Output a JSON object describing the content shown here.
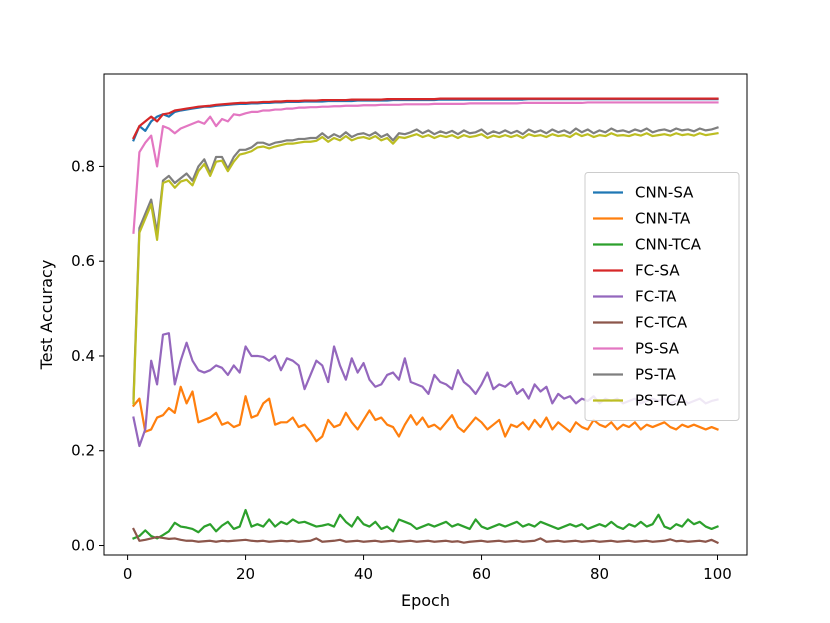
{
  "chart_data": {
    "type": "line",
    "title": "",
    "xlabel": "Epoch",
    "ylabel": "Test Accuracy",
    "xlim": [
      -4.0,
      105.0
    ],
    "ylim": [
      -0.02,
      0.995
    ],
    "xticks": [
      0,
      20,
      40,
      60,
      80,
      100
    ],
    "yticks": [
      0.0,
      0.2,
      0.4,
      0.6,
      0.8
    ],
    "xtick_labels": [
      "0",
      "20",
      "40",
      "60",
      "80",
      "100"
    ],
    "ytick_labels": [
      "0.0",
      "0.2",
      "0.4",
      "0.6",
      "0.8"
    ],
    "grid": false,
    "legend": "center-right",
    "x": [
      1,
      2,
      3,
      4,
      5,
      6,
      7,
      8,
      9,
      10,
      11,
      12,
      13,
      14,
      15,
      16,
      17,
      18,
      19,
      20,
      21,
      22,
      23,
      24,
      25,
      26,
      27,
      28,
      29,
      30,
      31,
      32,
      33,
      34,
      35,
      36,
      37,
      38,
      39,
      40,
      41,
      42,
      43,
      44,
      45,
      46,
      47,
      48,
      49,
      50,
      51,
      52,
      53,
      54,
      55,
      56,
      57,
      58,
      59,
      60,
      61,
      62,
      63,
      64,
      65,
      66,
      67,
      68,
      69,
      70,
      71,
      72,
      73,
      74,
      75,
      76,
      77,
      78,
      79,
      80,
      81,
      82,
      83,
      84,
      85,
      86,
      87,
      88,
      89,
      90,
      91,
      92,
      93,
      94,
      95,
      96,
      97,
      98,
      99,
      100
    ],
    "series": [
      {
        "name": "CNN-SA",
        "color": "#1f77b4",
        "values": [
          0.855,
          0.885,
          0.875,
          0.895,
          0.905,
          0.91,
          0.905,
          0.915,
          0.918,
          0.92,
          0.922,
          0.924,
          0.926,
          0.926,
          0.928,
          0.929,
          0.93,
          0.931,
          0.932,
          0.932,
          0.933,
          0.933,
          0.934,
          0.934,
          0.935,
          0.935,
          0.936,
          0.936,
          0.936,
          0.937,
          0.937,
          0.937,
          0.937,
          0.938,
          0.938,
          0.938,
          0.938,
          0.938,
          0.939,
          0.939,
          0.939,
          0.939,
          0.939,
          0.939,
          0.94,
          0.94,
          0.94,
          0.94,
          0.94,
          0.94,
          0.94,
          0.94,
          0.941,
          0.941,
          0.941,
          0.941,
          0.941,
          0.941,
          0.941,
          0.941,
          0.941,
          0.941,
          0.941,
          0.941,
          0.941,
          0.941,
          0.941,
          0.942,
          0.942,
          0.942,
          0.942,
          0.942,
          0.942,
          0.942,
          0.942,
          0.942,
          0.942,
          0.942,
          0.942,
          0.942,
          0.942,
          0.942,
          0.942,
          0.942,
          0.942,
          0.942,
          0.942,
          0.942,
          0.942,
          0.942,
          0.942,
          0.942,
          0.942,
          0.942,
          0.942,
          0.942,
          0.942,
          0.942,
          0.942,
          0.942
        ]
      },
      {
        "name": "CNN-TA",
        "color": "#ff7f0e",
        "values": [
          0.295,
          0.31,
          0.24,
          0.245,
          0.27,
          0.275,
          0.29,
          0.28,
          0.335,
          0.3,
          0.325,
          0.26,
          0.265,
          0.27,
          0.28,
          0.255,
          0.26,
          0.25,
          0.255,
          0.315,
          0.27,
          0.275,
          0.3,
          0.31,
          0.255,
          0.26,
          0.26,
          0.27,
          0.25,
          0.255,
          0.24,
          0.22,
          0.23,
          0.265,
          0.25,
          0.255,
          0.28,
          0.26,
          0.245,
          0.265,
          0.285,
          0.265,
          0.27,
          0.255,
          0.25,
          0.23,
          0.255,
          0.275,
          0.255,
          0.27,
          0.25,
          0.255,
          0.245,
          0.26,
          0.275,
          0.25,
          0.24,
          0.255,
          0.27,
          0.26,
          0.245,
          0.255,
          0.265,
          0.23,
          0.255,
          0.25,
          0.26,
          0.245,
          0.265,
          0.25,
          0.27,
          0.245,
          0.26,
          0.25,
          0.24,
          0.26,
          0.25,
          0.245,
          0.265,
          0.255,
          0.25,
          0.26,
          0.245,
          0.255,
          0.25,
          0.26,
          0.245,
          0.255,
          0.25,
          0.255,
          0.26,
          0.25,
          0.245,
          0.255,
          0.25,
          0.255,
          0.25,
          0.245,
          0.25,
          0.245
        ]
      },
      {
        "name": "CNN-TCA",
        "color": "#2ca02c",
        "values": [
          0.015,
          0.02,
          0.032,
          0.02,
          0.015,
          0.022,
          0.03,
          0.048,
          0.04,
          0.038,
          0.035,
          0.028,
          0.04,
          0.045,
          0.03,
          0.042,
          0.05,
          0.035,
          0.04,
          0.075,
          0.04,
          0.045,
          0.04,
          0.055,
          0.04,
          0.05,
          0.045,
          0.055,
          0.048,
          0.05,
          0.045,
          0.04,
          0.042,
          0.045,
          0.04,
          0.065,
          0.05,
          0.04,
          0.06,
          0.045,
          0.04,
          0.05,
          0.035,
          0.04,
          0.03,
          0.055,
          0.05,
          0.045,
          0.035,
          0.04,
          0.045,
          0.04,
          0.045,
          0.05,
          0.04,
          0.045,
          0.04,
          0.035,
          0.055,
          0.04,
          0.035,
          0.04,
          0.045,
          0.04,
          0.045,
          0.05,
          0.04,
          0.045,
          0.04,
          0.05,
          0.045,
          0.04,
          0.035,
          0.04,
          0.045,
          0.04,
          0.045,
          0.035,
          0.04,
          0.045,
          0.04,
          0.05,
          0.04,
          0.035,
          0.045,
          0.04,
          0.05,
          0.04,
          0.045,
          0.065,
          0.04,
          0.035,
          0.045,
          0.04,
          0.055,
          0.045,
          0.05,
          0.04,
          0.035,
          0.04
        ]
      },
      {
        "name": "FC-SA",
        "color": "#d62728",
        "values": [
          0.86,
          0.885,
          0.895,
          0.905,
          0.895,
          0.91,
          0.912,
          0.918,
          0.92,
          0.922,
          0.924,
          0.926,
          0.927,
          0.928,
          0.93,
          0.931,
          0.932,
          0.933,
          0.934,
          0.934,
          0.935,
          0.935,
          0.936,
          0.936,
          0.937,
          0.937,
          0.938,
          0.938,
          0.938,
          0.939,
          0.939,
          0.939,
          0.94,
          0.94,
          0.94,
          0.94,
          0.94,
          0.941,
          0.941,
          0.941,
          0.941,
          0.941,
          0.941,
          0.942,
          0.942,
          0.942,
          0.942,
          0.942,
          0.942,
          0.942,
          0.942,
          0.942,
          0.943,
          0.943,
          0.943,
          0.943,
          0.943,
          0.943,
          0.943,
          0.943,
          0.943,
          0.943,
          0.943,
          0.943,
          0.943,
          0.943,
          0.943,
          0.943,
          0.943,
          0.943,
          0.943,
          0.943,
          0.943,
          0.943,
          0.943,
          0.943,
          0.943,
          0.943,
          0.943,
          0.943,
          0.943,
          0.943,
          0.943,
          0.943,
          0.943,
          0.943,
          0.943,
          0.943,
          0.943,
          0.943,
          0.943,
          0.943,
          0.943,
          0.943,
          0.943,
          0.943,
          0.943,
          0.943,
          0.943,
          0.943
        ]
      },
      {
        "name": "FC-TA",
        "color": "#9467bd",
        "values": [
          0.27,
          0.21,
          0.245,
          0.39,
          0.34,
          0.445,
          0.448,
          0.34,
          0.39,
          0.428,
          0.39,
          0.37,
          0.365,
          0.37,
          0.38,
          0.375,
          0.36,
          0.38,
          0.365,
          0.42,
          0.4,
          0.4,
          0.398,
          0.39,
          0.4,
          0.37,
          0.395,
          0.39,
          0.38,
          0.33,
          0.36,
          0.39,
          0.38,
          0.345,
          0.42,
          0.38,
          0.35,
          0.395,
          0.365,
          0.385,
          0.35,
          0.335,
          0.34,
          0.36,
          0.365,
          0.35,
          0.395,
          0.345,
          0.34,
          0.335,
          0.32,
          0.36,
          0.345,
          0.34,
          0.33,
          0.37,
          0.345,
          0.335,
          0.32,
          0.34,
          0.365,
          0.33,
          0.34,
          0.335,
          0.345,
          0.32,
          0.33,
          0.31,
          0.34,
          0.325,
          0.335,
          0.3,
          0.32,
          0.31,
          0.315,
          0.3,
          0.31,
          0.305,
          0.315,
          0.3,
          0.31,
          0.305,
          0.31,
          0.3,
          0.305,
          0.31,
          0.3,
          0.305,
          0.31,
          0.305,
          0.31,
          0.3,
          0.305,
          0.31,
          0.3,
          0.305,
          0.31,
          0.3,
          0.305,
          0.308
        ]
      },
      {
        "name": "FC-TCA",
        "color": "#8c564b",
        "values": [
          0.035,
          0.01,
          0.012,
          0.015,
          0.018,
          0.016,
          0.014,
          0.015,
          0.012,
          0.01,
          0.01,
          0.008,
          0.009,
          0.01,
          0.008,
          0.01,
          0.009,
          0.01,
          0.011,
          0.012,
          0.01,
          0.009,
          0.01,
          0.008,
          0.009,
          0.01,
          0.009,
          0.01,
          0.008,
          0.009,
          0.01,
          0.015,
          0.008,
          0.009,
          0.01,
          0.012,
          0.008,
          0.009,
          0.01,
          0.008,
          0.009,
          0.01,
          0.008,
          0.009,
          0.01,
          0.008,
          0.009,
          0.01,
          0.008,
          0.009,
          0.01,
          0.008,
          0.009,
          0.01,
          0.008,
          0.009,
          0.006,
          0.008,
          0.009,
          0.01,
          0.008,
          0.009,
          0.01,
          0.008,
          0.009,
          0.01,
          0.008,
          0.009,
          0.01,
          0.015,
          0.008,
          0.009,
          0.01,
          0.008,
          0.009,
          0.01,
          0.008,
          0.009,
          0.01,
          0.008,
          0.009,
          0.01,
          0.008,
          0.009,
          0.01,
          0.008,
          0.009,
          0.01,
          0.008,
          0.009,
          0.01,
          0.013,
          0.009,
          0.01,
          0.008,
          0.009,
          0.01,
          0.008,
          0.012,
          0.006
        ]
      },
      {
        "name": "PS-SA",
        "color": "#e377c2",
        "values": [
          0.66,
          0.83,
          0.85,
          0.865,
          0.8,
          0.885,
          0.88,
          0.87,
          0.88,
          0.885,
          0.89,
          0.895,
          0.89,
          0.905,
          0.885,
          0.9,
          0.895,
          0.91,
          0.908,
          0.912,
          0.915,
          0.915,
          0.918,
          0.918,
          0.92,
          0.92,
          0.922,
          0.922,
          0.924,
          0.924,
          0.925,
          0.925,
          0.926,
          0.926,
          0.927,
          0.927,
          0.928,
          0.928,
          0.928,
          0.929,
          0.929,
          0.929,
          0.93,
          0.93,
          0.93,
          0.93,
          0.931,
          0.931,
          0.931,
          0.931,
          0.931,
          0.932,
          0.932,
          0.932,
          0.932,
          0.932,
          0.932,
          0.933,
          0.933,
          0.933,
          0.933,
          0.933,
          0.933,
          0.933,
          0.933,
          0.933,
          0.934,
          0.934,
          0.934,
          0.934,
          0.934,
          0.934,
          0.934,
          0.934,
          0.934,
          0.934,
          0.934,
          0.935,
          0.935,
          0.935,
          0.935,
          0.935,
          0.935,
          0.935,
          0.935,
          0.935,
          0.935,
          0.935,
          0.935,
          0.935,
          0.935,
          0.935,
          0.935,
          0.935,
          0.935,
          0.935,
          0.935,
          0.935,
          0.935,
          0.935
        ]
      },
      {
        "name": "PS-TA",
        "color": "#7f7f7f",
        "values": [
          0.31,
          0.67,
          0.7,
          0.73,
          0.66,
          0.77,
          0.78,
          0.765,
          0.775,
          0.785,
          0.77,
          0.8,
          0.815,
          0.785,
          0.82,
          0.82,
          0.795,
          0.82,
          0.835,
          0.835,
          0.84,
          0.85,
          0.85,
          0.845,
          0.85,
          0.852,
          0.855,
          0.855,
          0.858,
          0.858,
          0.86,
          0.86,
          0.87,
          0.86,
          0.868,
          0.862,
          0.872,
          0.862,
          0.868,
          0.87,
          0.865,
          0.872,
          0.862,
          0.868,
          0.855,
          0.87,
          0.868,
          0.872,
          0.878,
          0.87,
          0.876,
          0.868,
          0.874,
          0.87,
          0.875,
          0.868,
          0.876,
          0.87,
          0.872,
          0.878,
          0.868,
          0.874,
          0.87,
          0.876,
          0.87,
          0.875,
          0.868,
          0.878,
          0.872,
          0.876,
          0.87,
          0.878,
          0.872,
          0.876,
          0.87,
          0.88,
          0.872,
          0.878,
          0.87,
          0.876,
          0.872,
          0.88,
          0.874,
          0.876,
          0.872,
          0.878,
          0.874,
          0.88,
          0.872,
          0.876,
          0.878,
          0.874,
          0.88,
          0.876,
          0.878,
          0.874,
          0.88,
          0.876,
          0.878,
          0.882
        ]
      },
      {
        "name": "PS-TCA",
        "color": "#bcbd22",
        "values": [
          0.3,
          0.66,
          0.69,
          0.72,
          0.645,
          0.765,
          0.77,
          0.755,
          0.768,
          0.772,
          0.76,
          0.79,
          0.805,
          0.78,
          0.81,
          0.812,
          0.79,
          0.81,
          0.825,
          0.828,
          0.832,
          0.84,
          0.842,
          0.838,
          0.842,
          0.845,
          0.848,
          0.848,
          0.85,
          0.852,
          0.852,
          0.854,
          0.862,
          0.852,
          0.86,
          0.855,
          0.864,
          0.855,
          0.86,
          0.862,
          0.858,
          0.864,
          0.855,
          0.86,
          0.848,
          0.862,
          0.86,
          0.864,
          0.868,
          0.862,
          0.866,
          0.86,
          0.865,
          0.862,
          0.866,
          0.86,
          0.866,
          0.862,
          0.864,
          0.868,
          0.86,
          0.865,
          0.862,
          0.866,
          0.862,
          0.866,
          0.86,
          0.868,
          0.864,
          0.866,
          0.862,
          0.868,
          0.864,
          0.866,
          0.862,
          0.87,
          0.864,
          0.868,
          0.862,
          0.866,
          0.864,
          0.87,
          0.865,
          0.866,
          0.864,
          0.868,
          0.865,
          0.87,
          0.864,
          0.866,
          0.868,
          0.865,
          0.87,
          0.866,
          0.868,
          0.865,
          0.87,
          0.866,
          0.868,
          0.87
        ]
      }
    ]
  }
}
